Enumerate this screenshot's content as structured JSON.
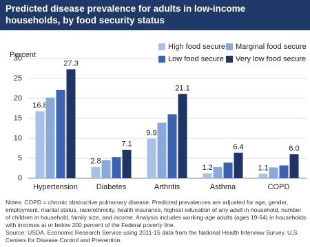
{
  "chart_data": {
    "type": "bar",
    "title": "Predicted disease prevalence for adults in low-income households, by food security status",
    "y_label": "Percent",
    "categories": [
      "Hypertension",
      "Diabetes",
      "Arthritis",
      "Asthma",
      "COPD"
    ],
    "series": [
      {
        "name": "High food secure",
        "color": "#a9c1e6",
        "values": [
          16.8,
          2.8,
          9.9,
          1.2,
          1.1
        ],
        "value_labels": [
          "16.8",
          "2.8",
          "9.9",
          "1.2",
          "1.1"
        ]
      },
      {
        "name": "Marginal food secure",
        "color": "#8aa8da",
        "values": [
          20.2,
          4.5,
          13.9,
          2.8,
          2.7
        ]
      },
      {
        "name": "Low food secure",
        "color": "#3c62b0",
        "values": [
          22.1,
          5.3,
          16.0,
          3.9,
          3.2
        ]
      },
      {
        "name": "Very low food secure",
        "color": "#1f3565",
        "values": [
          27.3,
          7.1,
          21.1,
          6.4,
          6.0
        ],
        "value_labels": [
          "27.3",
          "7.1",
          "21.1",
          "6.4",
          "6.0"
        ]
      }
    ],
    "ylim": [
      0,
      30
    ],
    "yticks": [
      0,
      5,
      10,
      15,
      20,
      25,
      30
    ],
    "grid": true,
    "legend": "top-right",
    "notes": "Notes: COPD = chronic obstructive pulmonary disease. Predicted prevalences are adjusted for age, gender, employment, marital status, race/ethnicity, health insurance, highest education of any adult in household, number of children in household, family size, and income. Analysis includes working-age adults (ages 19-64) in households with incomes at or below 200 percent of the Federal poverty line.",
    "source": "Source: USDA, Economic Research Service using 2011-15 data from the National Health Interview Survey, U.S. Centers for Disease Control and Prevention."
  }
}
